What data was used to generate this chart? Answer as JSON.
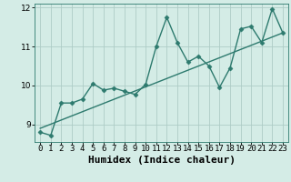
{
  "xlabel": "Humidex (Indice chaleur)",
  "bg_color": "#d4ece6",
  "grid_color": "#aeccc6",
  "line_color": "#2d7a6e",
  "xlim": [
    -0.5,
    23.5
  ],
  "ylim": [
    8.55,
    12.1
  ],
  "yticks": [
    9,
    10,
    11,
    12
  ],
  "xticks": [
    0,
    1,
    2,
    3,
    4,
    5,
    6,
    7,
    8,
    9,
    10,
    11,
    12,
    13,
    14,
    15,
    16,
    17,
    18,
    19,
    20,
    21,
    22,
    23
  ],
  "data_x": [
    0,
    1,
    2,
    3,
    4,
    5,
    6,
    7,
    8,
    9,
    10,
    11,
    12,
    13,
    14,
    15,
    16,
    17,
    18,
    19,
    20,
    21,
    22,
    23
  ],
  "data_y": [
    8.8,
    8.72,
    9.55,
    9.55,
    9.65,
    10.05,
    9.88,
    9.93,
    9.85,
    9.77,
    10.03,
    11.0,
    11.75,
    11.1,
    10.6,
    10.75,
    10.5,
    9.95,
    10.45,
    11.45,
    11.52,
    11.1,
    11.97,
    11.35
  ],
  "trend_x": [
    0,
    23
  ],
  "trend_y": [
    8.9,
    11.35
  ],
  "marker": "D",
  "marker_size": 2.5,
  "line_width": 1.0,
  "xlabel_fontsize": 8,
  "tick_fontsize": 6.5
}
